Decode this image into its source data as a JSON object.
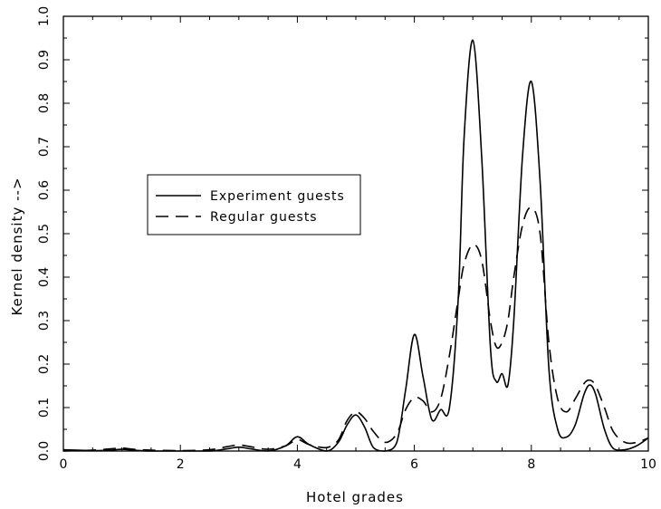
{
  "chart_data": {
    "type": "line",
    "xlabel": "Hotel grades",
    "ylabel": "Kernel density -->",
    "xlim": [
      0,
      10
    ],
    "ylim": [
      0,
      1.0
    ],
    "xticks": [
      0,
      2,
      4,
      6,
      8,
      10
    ],
    "xtick_labels": [
      "0",
      "2",
      "4",
      "6",
      "8",
      "10"
    ],
    "yticks": [
      0,
      0.1,
      0.2,
      0.3,
      0.4,
      0.5,
      0.6,
      0.7,
      0.8,
      0.9,
      1.0
    ],
    "ytick_labels": [
      "0.0",
      "0.1",
      "0.2",
      "0.3",
      "0.4",
      "0.5",
      "0.6",
      "0.7",
      "0.8",
      "0.9",
      "1.0"
    ],
    "grid": false,
    "legend_position": "center-left",
    "series": [
      {
        "name": "Experiment guests",
        "style": "solid",
        "color": "#000000",
        "x": [
          0.0,
          0.5,
          0.8,
          1.0,
          1.2,
          1.5,
          2.0,
          2.5,
          2.8,
          3.0,
          3.2,
          3.5,
          3.8,
          4.0,
          4.2,
          4.5,
          4.7,
          4.85,
          5.0,
          5.15,
          5.3,
          5.5,
          5.7,
          5.85,
          6.0,
          6.15,
          6.3,
          6.45,
          6.6,
          6.75,
          6.85,
          7.0,
          7.15,
          7.3,
          7.4,
          7.5,
          7.6,
          7.7,
          7.85,
          8.0,
          8.15,
          8.3,
          8.45,
          8.6,
          8.75,
          8.9,
          9.0,
          9.1,
          9.25,
          9.4,
          9.6,
          9.8,
          10.0
        ],
        "y": [
          0.003,
          0.001,
          0.002,
          0.004,
          0.002,
          0.0,
          0.0,
          0.0,
          0.005,
          0.009,
          0.005,
          0.0,
          0.012,
          0.033,
          0.015,
          0.0,
          0.02,
          0.06,
          0.083,
          0.055,
          0.008,
          0.0,
          0.02,
          0.14,
          0.268,
          0.17,
          0.072,
          0.095,
          0.1,
          0.35,
          0.72,
          0.945,
          0.68,
          0.24,
          0.16,
          0.178,
          0.152,
          0.3,
          0.68,
          0.85,
          0.62,
          0.19,
          0.05,
          0.032,
          0.06,
          0.13,
          0.152,
          0.13,
          0.05,
          0.006,
          0.003,
          0.012,
          0.03
        ]
      },
      {
        "name": "Regular guests",
        "style": "dashed",
        "color": "#000000",
        "x": [
          0.0,
          0.5,
          0.8,
          1.0,
          1.2,
          1.5,
          2.0,
          2.5,
          2.8,
          3.0,
          3.2,
          3.5,
          3.8,
          4.0,
          4.2,
          4.5,
          4.7,
          4.85,
          5.0,
          5.15,
          5.3,
          5.5,
          5.7,
          5.85,
          6.0,
          6.15,
          6.3,
          6.45,
          6.6,
          6.75,
          6.85,
          7.0,
          7.15,
          7.3,
          7.4,
          7.5,
          7.6,
          7.7,
          7.85,
          8.0,
          8.15,
          8.3,
          8.45,
          8.6,
          8.75,
          8.9,
          9.0,
          9.1,
          9.25,
          9.4,
          9.6,
          9.8,
          10.0
        ],
        "y": [
          0.0,
          0.002,
          0.005,
          0.007,
          0.004,
          0.002,
          0.001,
          0.003,
          0.01,
          0.014,
          0.01,
          0.004,
          0.012,
          0.026,
          0.015,
          0.008,
          0.025,
          0.07,
          0.09,
          0.075,
          0.045,
          0.02,
          0.04,
          0.095,
          0.123,
          0.115,
          0.09,
          0.12,
          0.22,
          0.35,
          0.43,
          0.475,
          0.44,
          0.3,
          0.24,
          0.25,
          0.3,
          0.4,
          0.52,
          0.56,
          0.5,
          0.25,
          0.12,
          0.09,
          0.12,
          0.155,
          0.163,
          0.15,
          0.1,
          0.045,
          0.02,
          0.02,
          0.03
        ]
      }
    ]
  }
}
